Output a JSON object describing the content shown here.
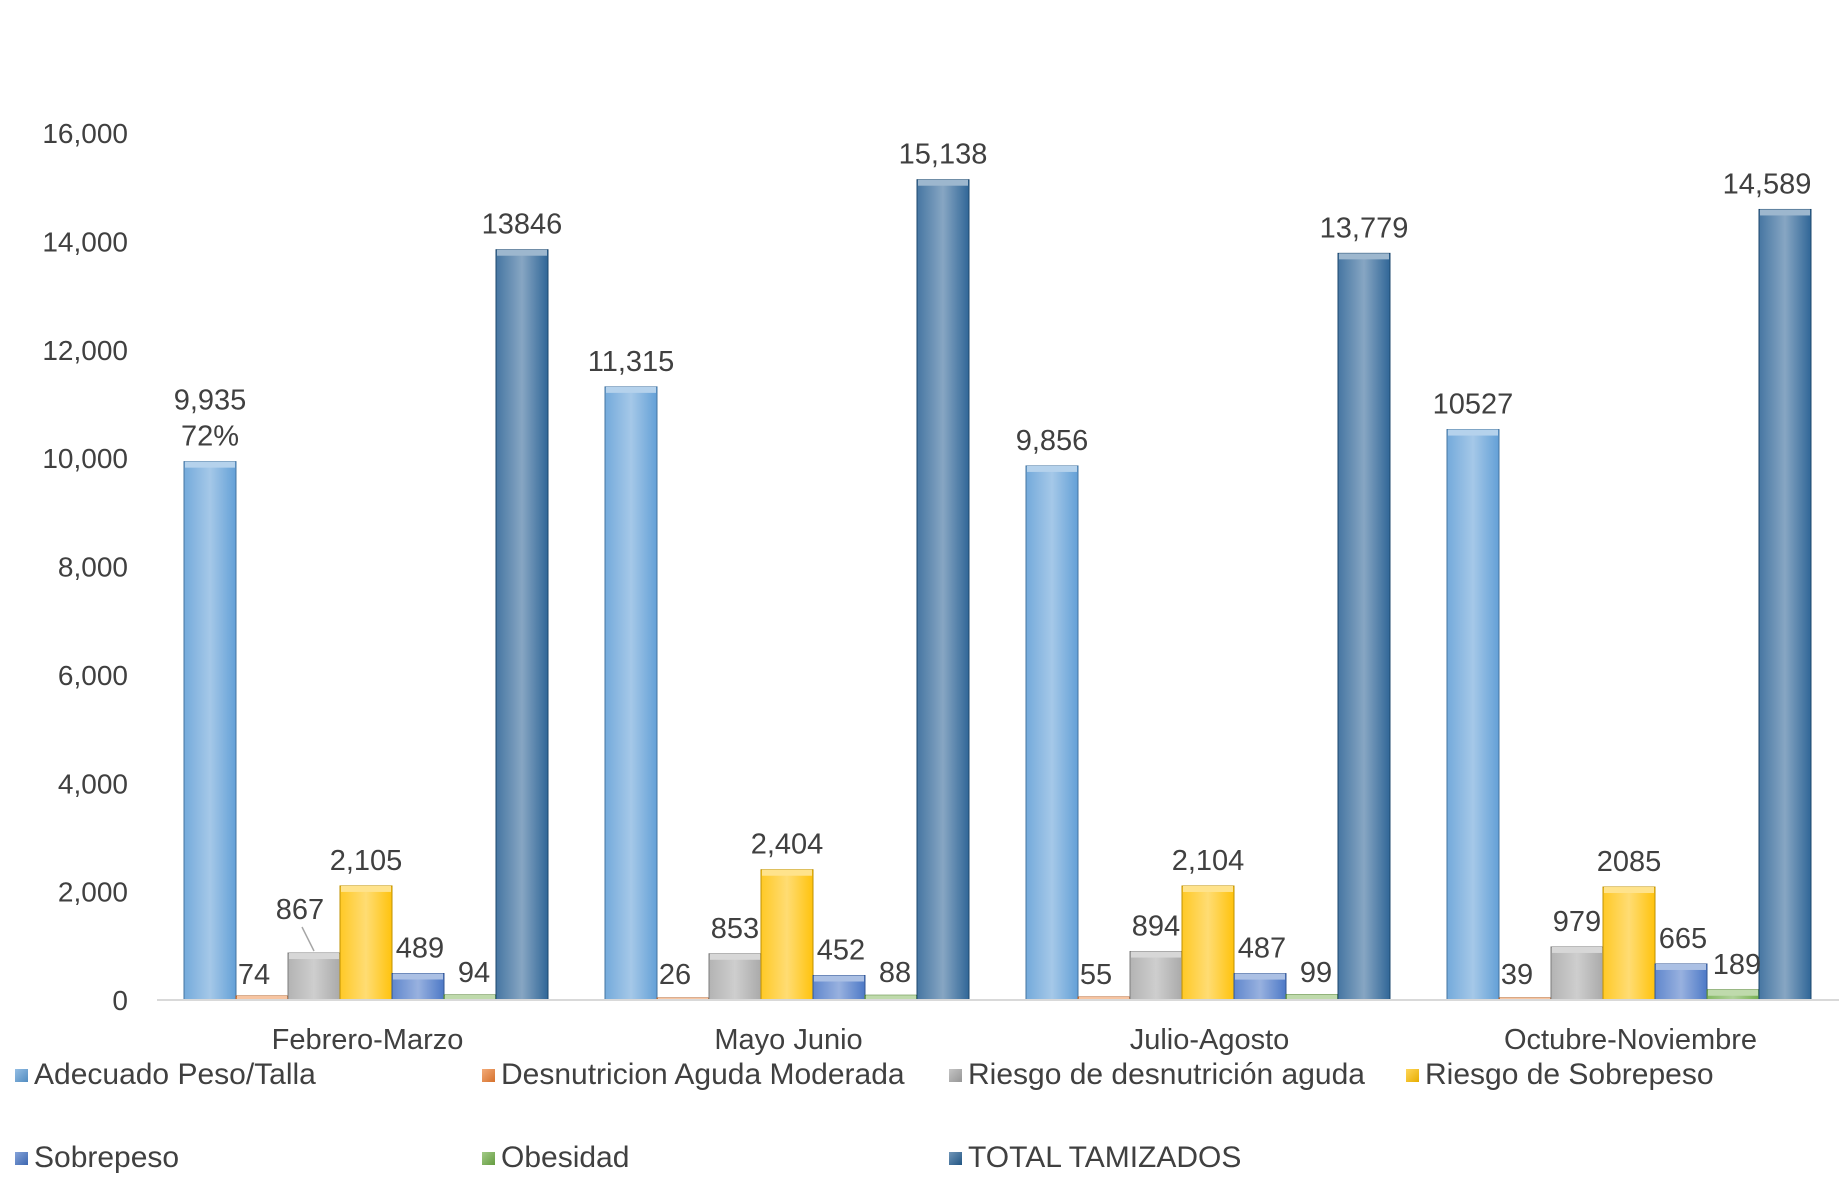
{
  "chart_data": {
    "type": "bar",
    "categories": [
      "Febrero-Marzo",
      "Mayo Junio",
      "Julio-Agosto",
      "Octubre-Noviembre"
    ],
    "ylim": [
      0,
      16000
    ],
    "yticks": [
      "0",
      "2,000",
      "4,000",
      "6,000",
      "8,000",
      "10,000",
      "12,000",
      "14,000",
      "16,000"
    ],
    "grid": false,
    "legend_position": "bottom",
    "series": [
      {
        "name": "Adecuado Peso/Talla",
        "color": "#5B9BD5",
        "values": [
          9935,
          11315,
          9856,
          10527
        ],
        "labels": [
          "9,935",
          "11,315",
          "9,856",
          "10527"
        ]
      },
      {
        "name": "Desnutricion Aguda Moderada",
        "color": "#ED7D31",
        "values": [
          74,
          26,
          55,
          39
        ],
        "labels": [
          "74",
          "26",
          "55",
          "39"
        ]
      },
      {
        "name": "Riesgo de desnutrición aguda",
        "color": "#A5A5A5",
        "values": [
          867,
          853,
          894,
          979
        ],
        "labels": [
          "867",
          "853",
          "894",
          "979"
        ]
      },
      {
        "name": "Riesgo de Sobrepeso",
        "color": "#FFC000",
        "values": [
          2105,
          2404,
          2104,
          2085
        ],
        "labels": [
          "2,105",
          "2,404",
          "2,104",
          "2085"
        ]
      },
      {
        "name": "Sobrepeso",
        "color": "#4472C4",
        "values": [
          489,
          452,
          487,
          665
        ],
        "labels": [
          "489",
          "452",
          "487",
          "665"
        ]
      },
      {
        "name": "Obesidad",
        "color": "#70AD47",
        "values": [
          94,
          88,
          99,
          189
        ],
        "labels": [
          "94",
          "88",
          "99",
          "189"
        ]
      },
      {
        "name": "TOTAL TAMIZADOS",
        "color": "#255E91",
        "values": [
          13846,
          15138,
          13779,
          14589
        ],
        "labels": [
          "13846",
          "15,138",
          "13,779",
          "14,589"
        ]
      }
    ],
    "annotations": [
      {
        "text": "72%",
        "category": "Febrero-Marzo",
        "series": "Adecuado Peso/Talla"
      }
    ]
  }
}
